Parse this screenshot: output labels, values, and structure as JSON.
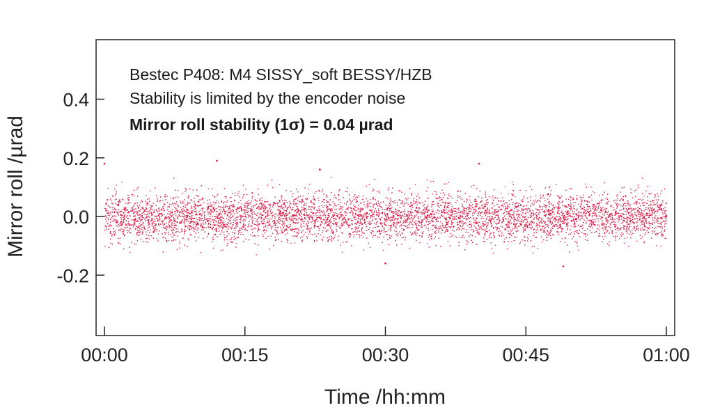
{
  "chart_data": {
    "type": "scatter",
    "xlabel": "Time /hh:mm",
    "ylabel": "Mirror roll /µrad",
    "xlim": [
      "00:00",
      "01:00"
    ],
    "ylim": [
      -0.4,
      0.6
    ],
    "x_ticks": [
      "00:00",
      "00:15",
      "00:30",
      "00:45",
      "01:00"
    ],
    "y_ticks": [
      "0.4",
      "0.2",
      "0.0",
      "-0.2"
    ],
    "annotations": [
      "Bestec P408: M4 SISSY_soft BESSY/HZB",
      "Stability is limited by the encoder noise",
      "Mirror roll stability (1σ) = 0.04 µrad"
    ],
    "series": [
      {
        "color": "#e0103f",
        "summary": {
          "mean": 0.0,
          "sigma": 0.04,
          "duration": "01:00"
        },
        "sample_x": [
          "00:00",
          "00:12",
          "00:23",
          "00:30",
          "00:40",
          "00:49",
          "01:00"
        ],
        "sample_values": [
          0.18,
          0.19,
          0.16,
          -0.16,
          0.18,
          -0.17,
          0.0
        ]
      }
    ],
    "grid": false
  }
}
